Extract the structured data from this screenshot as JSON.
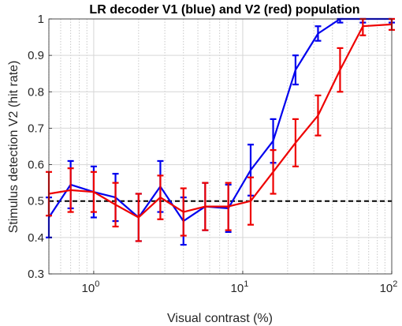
{
  "chart_data": {
    "type": "line",
    "title": "LR decoder V1 (blue) and V2 (red) population",
    "xlabel": "Visual contrast (%)",
    "ylabel": "Stimulus detection V2 (hit rate)",
    "xscale": "log",
    "xlim": [
      0.5,
      100
    ],
    "ylim": [
      0.3,
      1.0
    ],
    "yticks": [
      0.3,
      0.4,
      0.5,
      0.6,
      0.7,
      0.8,
      0.9,
      1.0
    ],
    "ytick_labels": [
      "0.3",
      "0.4",
      "0.5",
      "0.6",
      "0.7",
      "0.8",
      "0.9",
      "1"
    ],
    "xticks": [
      1,
      10,
      100
    ],
    "xtick_labels": [
      {
        "base": "10",
        "exp": "0"
      },
      {
        "base": "10",
        "exp": "1"
      },
      {
        "base": "10",
        "exp": "2"
      }
    ],
    "grid": true,
    "reference_line": {
      "y": 0.5,
      "style": "dashed",
      "color": "#000000"
    },
    "series": [
      {
        "color": "#0000ee",
        "x": [
          0.5,
          0.7,
          1.0,
          1.4,
          2.0,
          2.8,
          4.0,
          5.6,
          8.0,
          11.3,
          16,
          22.6,
          32,
          45,
          64,
          100
        ],
        "y": [
          0.455,
          0.545,
          0.525,
          0.51,
          0.455,
          0.54,
          0.445,
          0.485,
          0.48,
          0.585,
          0.665,
          0.86,
          0.96,
          1.0,
          1.0,
          1.0
        ],
        "err": [
          0.055,
          0.065,
          0.07,
          0.065,
          0.065,
          0.07,
          0.065,
          0.065,
          0.065,
          0.07,
          0.06,
          0.04,
          0.02,
          0.01,
          0.01,
          0.01
        ]
      },
      {
        "color": "#ee0000",
        "x": [
          0.5,
          0.7,
          1.0,
          1.4,
          2.0,
          2.8,
          4.0,
          5.6,
          8.0,
          11.3,
          16,
          22.6,
          32,
          45,
          64,
          100
        ],
        "y": [
          0.52,
          0.53,
          0.525,
          0.49,
          0.455,
          0.51,
          0.47,
          0.485,
          0.485,
          0.5,
          0.58,
          0.66,
          0.735,
          0.86,
          0.98,
          0.985
        ],
        "err": [
          0.06,
          0.06,
          0.055,
          0.06,
          0.065,
          0.06,
          0.065,
          0.065,
          0.065,
          0.065,
          0.06,
          0.065,
          0.055,
          0.06,
          0.025,
          0.015
        ]
      }
    ]
  }
}
